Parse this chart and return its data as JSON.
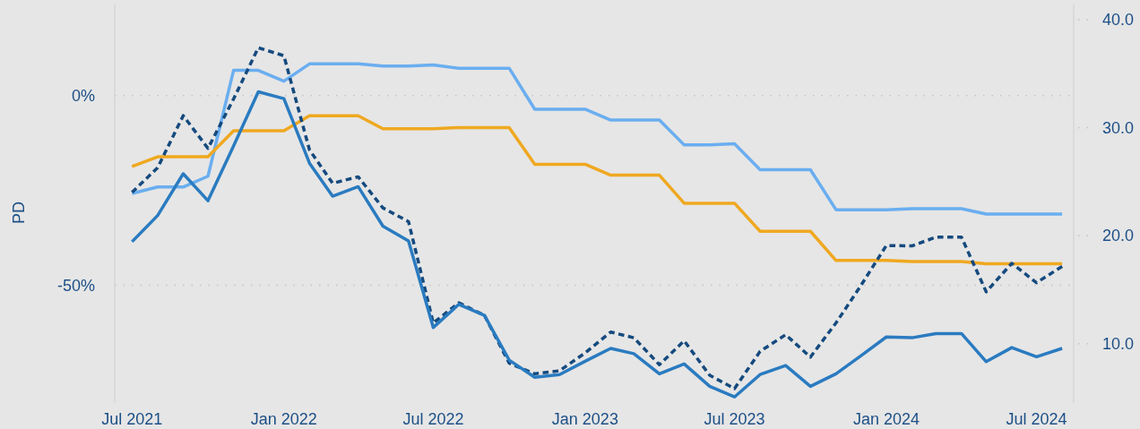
{
  "chart_data": {
    "type": "line",
    "ylabel": "PD",
    "x": [
      "2021-07",
      "2021-08",
      "2021-09",
      "2021-10",
      "2021-11",
      "2021-12",
      "2022-01",
      "2022-02",
      "2022-03",
      "2022-04",
      "2022-05",
      "2022-06",
      "2022-07",
      "2022-08",
      "2022-09",
      "2022-10",
      "2022-11",
      "2022-12",
      "2023-01",
      "2023-02",
      "2023-03",
      "2023-04",
      "2023-05",
      "2023-06",
      "2023-07",
      "2023-08",
      "2023-09",
      "2023-10",
      "2023-11",
      "2023-12",
      "2024-01",
      "2024-02",
      "2024-03",
      "2024-04",
      "2024-05",
      "2024-06",
      "2024-07",
      "2024-08"
    ],
    "xlim": [
      "2021-06-10",
      "2024-08-15"
    ],
    "xticks": [
      {
        "value": "2021-07",
        "label": "Jul 2021"
      },
      {
        "value": "2022-01",
        "label": "Jan 2022"
      },
      {
        "value": "2022-07",
        "label": "Jul 2022"
      },
      {
        "value": "2023-01",
        "label": "Jan 2023"
      },
      {
        "value": "2023-07",
        "label": "Jul 2023"
      },
      {
        "value": "2024-01",
        "label": "Jan 2024"
      },
      {
        "value": "2024-07",
        "label": "Jul 2024"
      }
    ],
    "ylim": [
      -81,
      24
    ],
    "yticks": [
      {
        "value": 0,
        "label": "0%"
      },
      {
        "value": -50,
        "label": "-50%"
      }
    ],
    "y2lim": [
      4.5,
      41.4
    ],
    "y2ticks": [
      {
        "value": 10,
        "label": "10.0"
      },
      {
        "value": 20,
        "label": "20.0"
      },
      {
        "value": 30,
        "label": "30.0"
      },
      {
        "value": 40,
        "label": "40.0"
      }
    ],
    "grid": "y",
    "marker": "none",
    "series": [
      {
        "color": "#6aaef0",
        "axis": "y2",
        "values": [
          23.9,
          24.5,
          24.5,
          25.5,
          35.3,
          35.3,
          34.3,
          35.9,
          35.9,
          35.9,
          35.7,
          35.7,
          35.8,
          35.5,
          35.5,
          35.5,
          31.7,
          31.7,
          31.7,
          30.7,
          30.7,
          30.7,
          28.4,
          28.4,
          28.5,
          26.1,
          26.1,
          26.1,
          22.4,
          22.4,
          22.4,
          22.5,
          22.5,
          22.5,
          22.0,
          22.0,
          22.0,
          22.0
        ]
      },
      {
        "color": "#efa820",
        "axis": "y2",
        "values": [
          26.4,
          27.3,
          27.3,
          27.3,
          29.7,
          29.7,
          29.7,
          31.1,
          31.1,
          31.1,
          29.9,
          29.9,
          29.9,
          30.0,
          30.0,
          30.0,
          26.6,
          26.6,
          26.6,
          25.6,
          25.6,
          25.6,
          23.0,
          23.0,
          23.0,
          20.4,
          20.4,
          20.4,
          17.7,
          17.7,
          17.7,
          17.6,
          17.6,
          17.6,
          17.4,
          17.4,
          17.4,
          17.4
        ]
      },
      {
        "color": "#154a7e",
        "line_style": "dashed",
        "values": [
          -25.5,
          -19.0,
          -5.3,
          -13.9,
          -0.9,
          12.6,
          10.5,
          -14.3,
          -23.1,
          -21.4,
          -29.6,
          -33.2,
          -59.9,
          -54.6,
          -57.9,
          -70.5,
          -73.3,
          -72.5,
          -67.8,
          -62.3,
          -63.8,
          -70.9,
          -64.6,
          -73.7,
          -77.2,
          -67.4,
          -63.0,
          -68.9,
          -59.9,
          -50.1,
          -39.5,
          -39.6,
          -37.3,
          -37.3,
          -51.7,
          -44.2,
          -49.3,
          -45.0
        ]
      },
      {
        "color": "#2a7bc0",
        "values": [
          -38.5,
          -31.6,
          -20.6,
          -27.7,
          -13.3,
          1.0,
          -0.8,
          -17.8,
          -26.5,
          -24.0,
          -34.4,
          -38.3,
          -61.1,
          -55.0,
          -57.9,
          -69.7,
          -74.2,
          -73.5,
          -70.0,
          -66.6,
          -68.0,
          -73.3,
          -70.7,
          -76.6,
          -79.4,
          -73.5,
          -71.1,
          -76.6,
          -73.3,
          -68.6,
          -63.6,
          -63.8,
          -62.7,
          -62.7,
          -70.1,
          -66.4,
          -68.8,
          -66.6
        ]
      }
    ]
  }
}
